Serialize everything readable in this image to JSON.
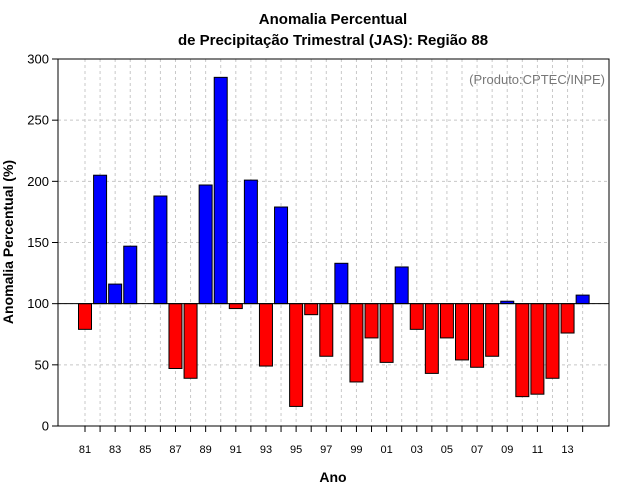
{
  "chart_data": {
    "type": "bar",
    "title_line1": "Anomalia Percentual",
    "title_line2": "de Precipitação Trimestral (JAS): Região 88",
    "credit": "(Produto:CPTEC/INPE)",
    "xlabel": "Ano",
    "ylabel": "Anomalia Percentual (%)",
    "baseline": 100,
    "ylim": [
      0,
      300
    ],
    "yticks": [
      0,
      50,
      100,
      150,
      200,
      250,
      300
    ],
    "grid": true,
    "colors": {
      "above": "#0000ff",
      "below": "#ff0000",
      "edge": "#000000"
    },
    "xtick_labels": [
      "81",
      "83",
      "85",
      "87",
      "89",
      "91",
      "93",
      "95",
      "97",
      "99",
      "01",
      "03",
      "05",
      "07",
      "09",
      "11",
      "13"
    ],
    "categories": [
      "81",
      "82",
      "83",
      "84",
      "85",
      "86",
      "87",
      "88",
      "89",
      "90",
      "91",
      "92",
      "93",
      "94",
      "95",
      "96",
      "97",
      "98",
      "99",
      "00",
      "01",
      "02",
      "03",
      "04",
      "05",
      "06",
      "07",
      "08",
      "09",
      "10",
      "11",
      "12",
      "13",
      "14"
    ],
    "values": [
      79,
      205,
      116,
      147,
      100,
      188,
      47,
      39,
      197,
      285,
      96,
      201,
      49,
      179,
      16,
      91,
      57,
      133,
      36,
      72,
      52,
      130,
      79,
      43,
      72,
      54,
      48,
      57,
      102,
      24,
      26,
      39,
      76,
      107
    ]
  }
}
